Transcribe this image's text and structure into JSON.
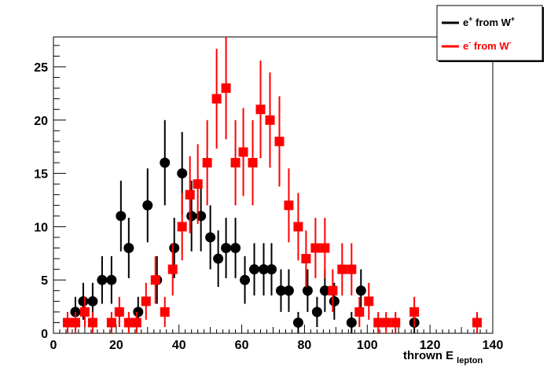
{
  "chart_data": {
    "type": "scatter",
    "title": "",
    "xlabel": "thrown E",
    "xlabel_sub": "lepton",
    "ylabel": "",
    "xlim": [
      0,
      140
    ],
    "ylim": [
      0,
      27.8
    ],
    "x_ticks": [
      0,
      20,
      40,
      60,
      80,
      100,
      120,
      140
    ],
    "y_ticks": [
      0,
      5,
      10,
      15,
      20,
      25
    ],
    "grid": false,
    "legend_position": "top-right",
    "series": [
      {
        "name": "e+ from W+",
        "legend_base": "e",
        "legend_sup1": "+",
        "legend_mid": " from W",
        "legend_sup2": "+",
        "color": "#000000",
        "marker": "circle",
        "points": [
          {
            "x": 7,
            "y": 2
          },
          {
            "x": 9.5,
            "y": 3
          },
          {
            "x": 12.5,
            "y": 3
          },
          {
            "x": 15.5,
            "y": 5
          },
          {
            "x": 18.5,
            "y": 5
          },
          {
            "x": 21.5,
            "y": 11
          },
          {
            "x": 24,
            "y": 8
          },
          {
            "x": 27,
            "y": 2
          },
          {
            "x": 30,
            "y": 12
          },
          {
            "x": 33,
            "y": 5
          },
          {
            "x": 35.5,
            "y": 16
          },
          {
            "x": 38.5,
            "y": 8
          },
          {
            "x": 41,
            "y": 15
          },
          {
            "x": 44,
            "y": 11
          },
          {
            "x": 47,
            "y": 11
          },
          {
            "x": 50,
            "y": 9
          },
          {
            "x": 52.5,
            "y": 7
          },
          {
            "x": 55,
            "y": 8
          },
          {
            "x": 58,
            "y": 8
          },
          {
            "x": 61,
            "y": 5
          },
          {
            "x": 64,
            "y": 6
          },
          {
            "x": 67,
            "y": 6
          },
          {
            "x": 69.5,
            "y": 6
          },
          {
            "x": 72.5,
            "y": 4
          },
          {
            "x": 75,
            "y": 4
          },
          {
            "x": 78,
            "y": 1
          },
          {
            "x": 81,
            "y": 4
          },
          {
            "x": 84,
            "y": 2
          },
          {
            "x": 86.5,
            "y": 4
          },
          {
            "x": 89.5,
            "y": 3
          },
          {
            "x": 95,
            "y": 1
          },
          {
            "x": 98,
            "y": 4
          },
          {
            "x": 115,
            "y": 1
          }
        ]
      },
      {
        "name": "e- from W-",
        "legend_base": "e",
        "legend_sup1": "-",
        "legend_mid": " from W",
        "legend_sup2": "-",
        "color": "#ff0000",
        "marker": "square",
        "points": [
          {
            "x": 4.5,
            "y": 1
          },
          {
            "x": 7,
            "y": 1
          },
          {
            "x": 10,
            "y": 2
          },
          {
            "x": 12.5,
            "y": 1
          },
          {
            "x": 18.5,
            "y": 1
          },
          {
            "x": 21,
            "y": 2
          },
          {
            "x": 24,
            "y": 1
          },
          {
            "x": 26.5,
            "y": 1
          },
          {
            "x": 29.5,
            "y": 3
          },
          {
            "x": 32.5,
            "y": 5
          },
          {
            "x": 35.5,
            "y": 2
          },
          {
            "x": 38,
            "y": 6
          },
          {
            "x": 41,
            "y": 10
          },
          {
            "x": 43.5,
            "y": 13
          },
          {
            "x": 46,
            "y": 14
          },
          {
            "x": 49,
            "y": 16
          },
          {
            "x": 52,
            "y": 22
          },
          {
            "x": 55,
            "y": 23
          },
          {
            "x": 58,
            "y": 16
          },
          {
            "x": 60.5,
            "y": 17
          },
          {
            "x": 63.5,
            "y": 16
          },
          {
            "x": 66,
            "y": 21
          },
          {
            "x": 69,
            "y": 20
          },
          {
            "x": 72,
            "y": 18
          },
          {
            "x": 75,
            "y": 12
          },
          {
            "x": 78,
            "y": 10
          },
          {
            "x": 80.5,
            "y": 7
          },
          {
            "x": 83.5,
            "y": 8
          },
          {
            "x": 86.5,
            "y": 8
          },
          {
            "x": 89,
            "y": 4
          },
          {
            "x": 92,
            "y": 6
          },
          {
            "x": 95,
            "y": 6
          },
          {
            "x": 97.5,
            "y": 2
          },
          {
            "x": 100.5,
            "y": 3
          },
          {
            "x": 103.5,
            "y": 1
          },
          {
            "x": 106,
            "y": 1
          },
          {
            "x": 109,
            "y": 1
          },
          {
            "x": 115,
            "y": 2
          },
          {
            "x": 135,
            "y": 1
          }
        ]
      }
    ]
  }
}
